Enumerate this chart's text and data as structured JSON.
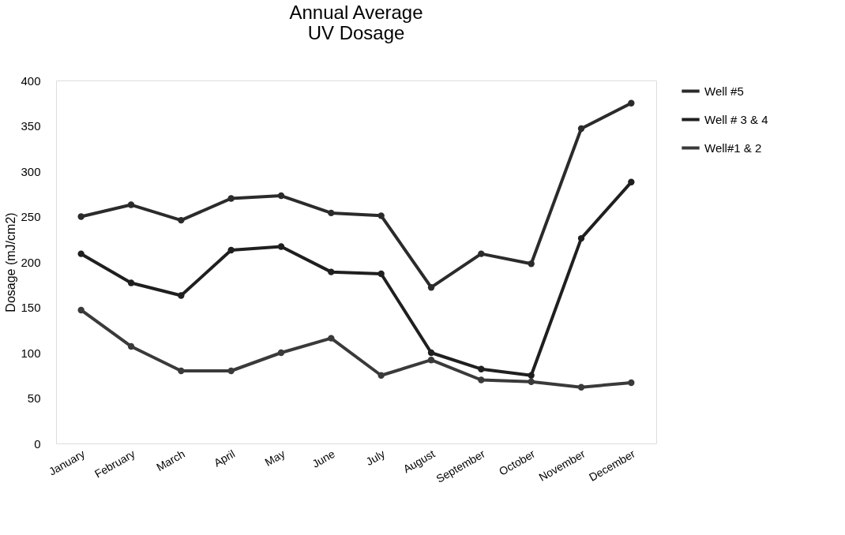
{
  "chart_data": {
    "type": "line",
    "title": "Annual Average\nUV Dosage",
    "ylabel": "Dosage (mJ/cm2)",
    "categories": [
      "January",
      "February",
      "March",
      "April",
      "May",
      "June",
      "July",
      "August",
      "September",
      "October",
      "November",
      "December"
    ],
    "series": [
      {
        "name": "Well #5",
        "color": "#2b2b2b",
        "values": [
          250,
          263,
          246,
          270,
          273,
          254,
          251,
          172,
          209,
          198,
          347,
          375
        ]
      },
      {
        "name": "Well # 3 & 4",
        "color": "#1f1f1f",
        "values": [
          209,
          177,
          163,
          213,
          217,
          189,
          187,
          100,
          82,
          75,
          226,
          288
        ]
      },
      {
        "name": "Well#1 & 2",
        "color": "#3a3a3a",
        "values": [
          147,
          107,
          80,
          80,
          100,
          116,
          75,
          92,
          70,
          68,
          62,
          67
        ]
      }
    ],
    "ylim": [
      0,
      400
    ],
    "yticks": [
      0,
      50,
      100,
      150,
      200,
      250,
      300,
      350,
      400
    ],
    "grid": false,
    "legend": "right",
    "marker": "circle",
    "line_style": "solid"
  }
}
